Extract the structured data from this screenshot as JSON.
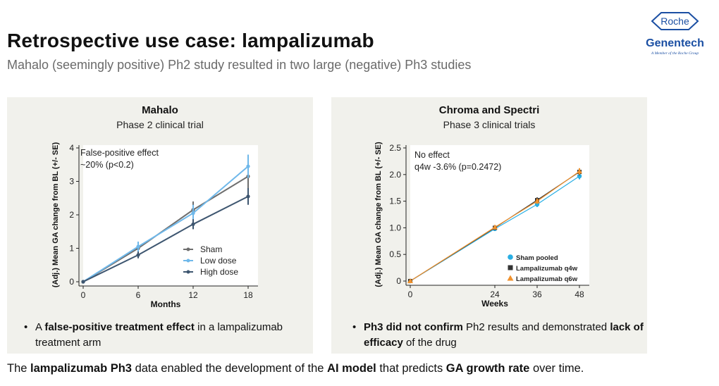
{
  "header": {
    "title": "Retrospective use case: lampalizumab",
    "subtitle": "Mahalo (seemingly positive) Ph2 study resulted in two large (negative) Ph3 studies"
  },
  "logo": {
    "roche": "Roche",
    "genentech": "Genentech",
    "tagline": "A Member of the Roche Group"
  },
  "panels": {
    "left": {
      "title": "Mahalo",
      "subtitle": "Phase 2 clinical trial",
      "annotation_line1": "False-positive effect",
      "annotation_line2": "~20% (p<0.2)",
      "bullet": {
        "pre": "A ",
        "bold": "false-positive treatment effect",
        "post": " in a lampalizumab treatment arm"
      }
    },
    "right": {
      "title": "Chroma and Spectri",
      "subtitle": "Phase 3 clinical trials",
      "annotation_line1": "No effect",
      "annotation_line2": "q4w -3.6% (p=0.2472)",
      "bullet": {
        "bold1": "Ph3 did not confirm",
        "mid": " Ph2 results and demonstrated ",
        "bold2": "lack of efficacy",
        "post": " of the drug"
      }
    }
  },
  "bottom": {
    "t1": "The ",
    "b1": "lampalizumab Ph3",
    "t2": " data enabled the development of the ",
    "b2": "AI model",
    "t3": " that predicts ",
    "b3": "GA growth rate",
    "t4": " over time."
  },
  "chart_data": [
    {
      "type": "line",
      "xlabel": "Months",
      "ylabel": "(Adj.) Mean GA change from BL (+/- SE)",
      "xlim": [
        0,
        18
      ],
      "ylim": [
        0,
        4
      ],
      "x_ticks": [
        0,
        6,
        12,
        18
      ],
      "y_ticks": [
        0,
        1,
        2,
        3,
        4
      ],
      "grid": false,
      "legend_position": "bottom-right",
      "x": [
        0,
        6,
        12,
        18
      ],
      "series": [
        {
          "name": "Sham",
          "color": "#6e6e6e",
          "values": [
            0,
            1.0,
            2.15,
            3.15
          ],
          "se": [
            0,
            0.15,
            0.25,
            0.35
          ]
        },
        {
          "name": "Low dose",
          "color": "#6fb8ea",
          "values": [
            0,
            1.05,
            2.05,
            3.45
          ],
          "se": [
            0,
            0.15,
            0.25,
            0.35
          ]
        },
        {
          "name": "High dose",
          "color": "#3e5670",
          "values": [
            0,
            0.8,
            1.72,
            2.55
          ],
          "se": [
            0,
            0.1,
            0.15,
            0.25
          ]
        }
      ]
    },
    {
      "type": "line",
      "xlabel": "Weeks",
      "ylabel": "(Adj.) Mean GA change from BL (+/- SE)",
      "xlim": [
        0,
        48
      ],
      "ylim": [
        0,
        2.5
      ],
      "x_ticks": [
        0,
        24,
        36,
        48
      ],
      "y_ticks": [
        0,
        0.5,
        1.0,
        1.5,
        2.0,
        2.5
      ],
      "grid": false,
      "legend_position": "bottom-right",
      "x": [
        0,
        24,
        36,
        48
      ],
      "series": [
        {
          "name": "Sham pooled",
          "color": "#29aee3",
          "marker": "circle",
          "values": [
            0,
            0.98,
            1.44,
            1.97
          ],
          "se": [
            0,
            0.04,
            0.05,
            0.06
          ]
        },
        {
          "name": "Lampalizumab q4w",
          "color": "#333333",
          "marker": "square",
          "values": [
            0,
            1.0,
            1.52,
            2.05
          ],
          "se": [
            0,
            0.04,
            0.05,
            0.06
          ]
        },
        {
          "name": "Lampalizumab q6w",
          "color": "#f0922e",
          "marker": "triangle",
          "values": [
            0,
            1.01,
            1.5,
            2.06
          ],
          "se": [
            0,
            0.04,
            0.05,
            0.06
          ]
        }
      ]
    }
  ]
}
